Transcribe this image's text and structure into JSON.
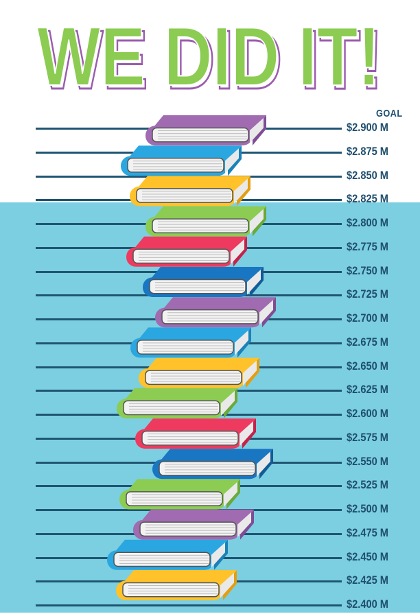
{
  "headline": "WE DID IT!",
  "goal_label": "GOAL",
  "scale_values": [
    "$2.900 M",
    "$2.875 M",
    "$2.850 M",
    "$2.825 M",
    "$2.800 M",
    "$2.775 M",
    "$2.750 M",
    "$2.725 M",
    "$2.700 M",
    "$2.675 M",
    "$2.650 M",
    "$2.625 M",
    "$2.600 M",
    "$2.575 M",
    "$2.550 M",
    "$2.525 M",
    "$2.500 M",
    "$2.475 M",
    "$2.450 M",
    "$2.425 M",
    "$2.400 M"
  ],
  "colors": {
    "headline_fill": "#8ccc52",
    "headline_outline": "#9b5cae",
    "background": "#7ccfe0",
    "line": "#1f5572",
    "label": "#1f4e6e"
  },
  "books": [
    "purple",
    "blue",
    "yellow",
    "green",
    "red",
    "darkblue",
    "purple",
    "blue",
    "yellow",
    "green",
    "red",
    "darkblue",
    "green",
    "purple",
    "blue",
    "yellow"
  ]
}
